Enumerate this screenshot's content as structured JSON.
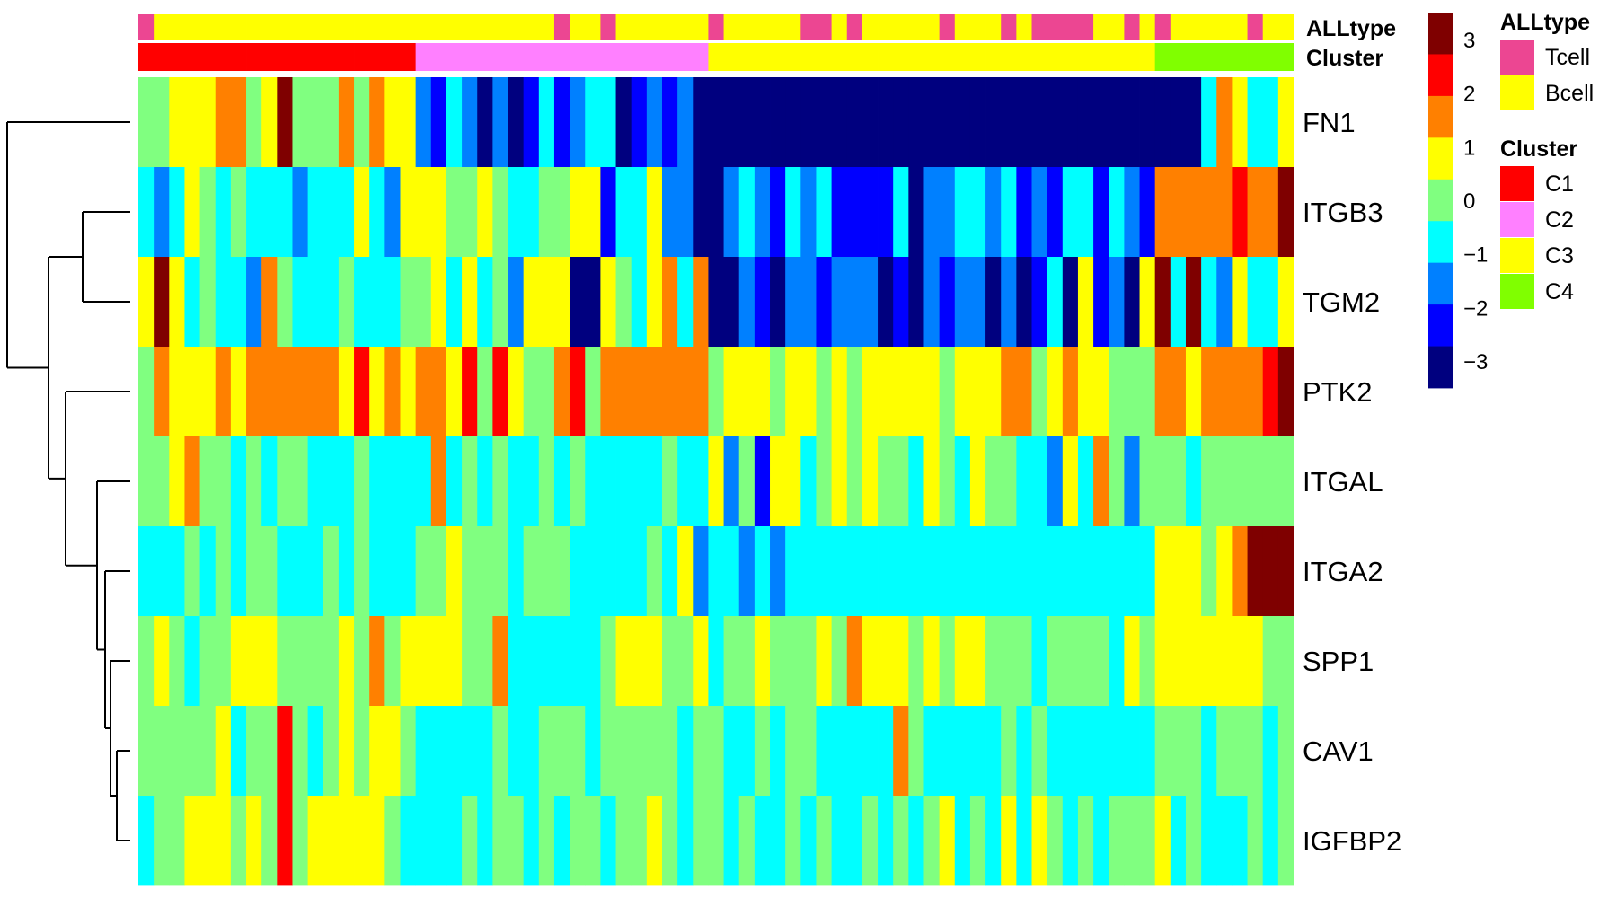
{
  "chart_data": {
    "type": "heatmap",
    "title": "",
    "rows": [
      "FN1",
      "ITGB3",
      "TGM2",
      "PTK2",
      "ITGAL",
      "ITGA2",
      "SPP1",
      "CAV1",
      "IGFBP2"
    ],
    "annotation_labels": {
      "alltype": "ALLtype",
      "cluster": "Cluster"
    },
    "color_scale": {
      "min": -3.5,
      "max": 3.5,
      "ticks": [
        3,
        2,
        1,
        0,
        -1,
        -2,
        -3
      ],
      "tick_labels": [
        "3",
        "2",
        "1",
        "0",
        "−1",
        "−2",
        "−3"
      ],
      "colors": [
        "#00007f",
        "#0000ff",
        "#0080ff",
        "#00ffff",
        "#80ff80",
        "#ffff00",
        "#ff8000",
        "#ff0000",
        "#7f0000"
      ]
    },
    "alltype_legend": {
      "title": "ALLtype",
      "items": [
        {
          "label": "Tcell",
          "color": "#ec4692"
        },
        {
          "label": "Bcell",
          "color": "#ffff00"
        }
      ]
    },
    "cluster_legend": {
      "title": "Cluster",
      "items": [
        {
          "label": "C1",
          "color": "#ff0000"
        },
        {
          "label": "C2",
          "color": "#ff80ff"
        },
        {
          "label": "C3",
          "color": "#ffff00"
        },
        {
          "label": "C4",
          "color": "#80ff00"
        }
      ]
    },
    "column_alltype": [
      "Tcell",
      "Bcell",
      "Bcell",
      "Bcell",
      "Bcell",
      "Bcell",
      "Bcell",
      "Bcell",
      "Bcell",
      "Bcell",
      "Bcell",
      "Bcell",
      "Bcell",
      "Bcell",
      "Bcell",
      "Bcell",
      "Bcell",
      "Bcell",
      "Bcell",
      "Bcell",
      "Bcell",
      "Bcell",
      "Bcell",
      "Bcell",
      "Bcell",
      "Bcell",
      "Bcell",
      "Tcell",
      "Bcell",
      "Bcell",
      "Tcell",
      "Bcell",
      "Bcell",
      "Bcell",
      "Bcell",
      "Bcell",
      "Bcell",
      "Tcell",
      "Bcell",
      "Bcell",
      "Bcell",
      "Bcell",
      "Bcell",
      "Tcell",
      "Tcell",
      "Bcell",
      "Tcell",
      "Bcell",
      "Bcell",
      "Bcell",
      "Bcell",
      "Bcell",
      "Tcell",
      "Bcell",
      "Bcell",
      "Bcell",
      "Tcell",
      "Bcell",
      "Tcell",
      "Tcell",
      "Tcell",
      "Tcell",
      "Bcell",
      "Bcell",
      "Tcell",
      "Bcell",
      "Tcell",
      "Bcell",
      "Bcell",
      "Bcell",
      "Bcell",
      "Bcell",
      "Tcell",
      "Bcell",
      "Bcell"
    ],
    "column_cluster": [
      "C1",
      "C1",
      "C1",
      "C1",
      "C1",
      "C1",
      "C1",
      "C1",
      "C1",
      "C1",
      "C1",
      "C1",
      "C1",
      "C1",
      "C1",
      "C1",
      "C1",
      "C1",
      "C2",
      "C2",
      "C2",
      "C2",
      "C2",
      "C2",
      "C2",
      "C2",
      "C2",
      "C2",
      "C2",
      "C2",
      "C2",
      "C2",
      "C2",
      "C2",
      "C2",
      "C2",
      "C2",
      "C3",
      "C3",
      "C3",
      "C3",
      "C3",
      "C3",
      "C3",
      "C3",
      "C3",
      "C3",
      "C3",
      "C3",
      "C3",
      "C3",
      "C3",
      "C3",
      "C3",
      "C3",
      "C3",
      "C3",
      "C3",
      "C3",
      "C3",
      "C3",
      "C3",
      "C3",
      "C3",
      "C3",
      "C3",
      "C4",
      "C4",
      "C4",
      "C4",
      "C4",
      "C4",
      "C4",
      "C4",
      "C4"
    ],
    "values": [
      [
        0.1,
        0.1,
        0.5,
        0.9,
        0.5,
        1.3,
        1.3,
        0.1,
        0.5,
        3.2,
        0.1,
        0.1,
        0.1,
        1.3,
        0.1,
        1.3,
        0.5,
        0.5,
        -1.5,
        -2.2,
        -1.0,
        -1.5,
        -2.8,
        -1.8,
        -3.2,
        -2.2,
        -0.5,
        -2.2,
        -1.5,
        -1.0,
        -1.0,
        -2.8,
        -2.2,
        -1.5,
        -2.2,
        -1.5,
        -2.8,
        -3.5,
        -3.5,
        -3.5,
        -3.5,
        -3.5,
        -3.5,
        -3.5,
        -3.5,
        -3.5,
        -3.5,
        -3.5,
        -3.5,
        -3.5,
        -3.5,
        -3.5,
        -3.5,
        -3.5,
        -3.5,
        -3.5,
        -3.5,
        -3.5,
        -3.5,
        -3.5,
        -3.5,
        -3.5,
        -3.5,
        -3.5,
        -3.5,
        -3.5,
        -3.5,
        -2.8,
        -3.2,
        -0.5,
        1.3,
        0.5,
        -0.5,
        -0.5,
        0.5
      ],
      [
        -1.0,
        -1.8,
        -0.5,
        0.5,
        0.1,
        -0.5,
        0.1,
        -1.0,
        -0.5,
        -0.5,
        -1.8,
        -1.0,
        -1.0,
        -1.0,
        0.9,
        -1.0,
        -1.8,
        0.9,
        0.5,
        0.9,
        0.1,
        0.1,
        0.9,
        0.1,
        -1.0,
        -1.0,
        0.1,
        0.1,
        0.5,
        0.9,
        -2.2,
        -1.0,
        -1.0,
        0.9,
        -1.8,
        -1.5,
        -3.2,
        -2.8,
        -1.8,
        -1.0,
        -1.8,
        -2.2,
        -1.0,
        -1.5,
        -1.0,
        -2.2,
        -2.2,
        -2.2,
        -2.2,
        -1.0,
        -3.2,
        -1.5,
        -1.8,
        -1.0,
        -0.5,
        -1.8,
        -1.0,
        -2.2,
        -1.8,
        -2.2,
        -1.0,
        -0.5,
        -2.2,
        -1.0,
        -1.8,
        -2.2,
        1.3,
        1.8,
        1.3,
        1.3,
        1.3,
        2.5,
        1.8,
        1.3,
        3.2
      ],
      [
        0.5,
        3.5,
        0.5,
        -0.5,
        0.1,
        -0.5,
        -0.5,
        -1.8,
        1.8,
        0.1,
        -1.0,
        -0.5,
        -1.0,
        0.1,
        -0.5,
        -1.0,
        -1.0,
        0.1,
        0.1,
        0.5,
        -0.5,
        0.5,
        -1.0,
        0.1,
        -1.5,
        0.5,
        0.9,
        0.9,
        -3.5,
        -3.5,
        0.5,
        0.1,
        -1.0,
        0.5,
        1.8,
        -0.5,
        1.8,
        -2.8,
        -3.2,
        -1.8,
        -2.2,
        -2.8,
        -1.8,
        -1.8,
        -2.2,
        -1.8,
        -1.8,
        -1.8,
        -3.2,
        -2.2,
        -2.8,
        -1.8,
        -2.2,
        -1.8,
        -1.8,
        -3.2,
        -1.8,
        -2.8,
        -2.2,
        -0.5,
        -2.8,
        0.5,
        -2.2,
        -1.8,
        -2.8,
        0.9,
        3.2,
        -0.5,
        3.2,
        -1.0,
        -1.5,
        0.5,
        -0.5,
        -0.5,
        0.5
      ],
      [
        0.1,
        1.3,
        0.5,
        0.9,
        0.5,
        1.8,
        0.9,
        1.3,
        1.3,
        1.3,
        1.3,
        1.3,
        1.8,
        0.9,
        2.5,
        0.5,
        1.3,
        0.9,
        1.8,
        1.3,
        0.5,
        2.5,
        0.1,
        2.5,
        0.5,
        0.1,
        0.1,
        1.3,
        2.5,
        0.1,
        1.8,
        1.3,
        1.3,
        1.3,
        1.3,
        1.3,
        1.3,
        0.1,
        0.5,
        0.5,
        0.5,
        0.1,
        0.5,
        0.9,
        0.1,
        0.5,
        0.1,
        0.5,
        0.5,
        0.9,
        0.5,
        0.9,
        0.1,
        0.5,
        0.5,
        0.5,
        1.3,
        1.3,
        0.1,
        0.5,
        1.8,
        0.5,
        0.5,
        0.1,
        0.1,
        0.1,
        1.3,
        1.8,
        0.9,
        1.8,
        1.3,
        1.3,
        1.8,
        2.5,
        3.5
      ],
      [
        0.1,
        0.1,
        0.5,
        1.8,
        0.1,
        0.1,
        -0.5,
        0.1,
        -0.5,
        0.1,
        0.1,
        -0.5,
        -0.5,
        -0.5,
        0.1,
        -0.5,
        -0.5,
        -0.5,
        -1.0,
        1.3,
        -1.0,
        0.1,
        -0.5,
        0.1,
        -0.5,
        -0.5,
        0.1,
        -0.5,
        0.1,
        -1.0,
        -0.5,
        -0.5,
        -1.0,
        -0.5,
        0.1,
        -0.5,
        -1.0,
        0.9,
        -1.8,
        0.1,
        -2.2,
        0.5,
        0.5,
        -1.0,
        0.1,
        0.9,
        0.1,
        0.5,
        0.1,
        0.1,
        -0.5,
        0.5,
        0.1,
        -0.5,
        0.5,
        0.1,
        0.1,
        -0.5,
        -0.5,
        -1.8,
        0.9,
        -0.5,
        1.8,
        0.1,
        -1.8,
        0.1,
        0.1,
        0.1,
        -0.5,
        0.1,
        0.1,
        0.1,
        0.1,
        0.1,
        0.1
      ],
      [
        -0.5,
        -0.5,
        -0.5,
        0.1,
        -0.5,
        0.1,
        -0.5,
        0.1,
        0.1,
        -0.5,
        -0.5,
        -0.5,
        0.1,
        -0.5,
        0.1,
        -1.0,
        -0.5,
        -0.5,
        0.1,
        0.1,
        0.5,
        0.1,
        0.1,
        0.1,
        -0.5,
        0.1,
        0.1,
        0.1,
        -1.0,
        -1.0,
        -0.5,
        -1.0,
        -0.5,
        0.1,
        -1.0,
        0.5,
        -1.5,
        -1.0,
        -1.0,
        -1.5,
        -1.0,
        -1.8,
        -1.0,
        -0.5,
        -1.0,
        -0.5,
        -0.5,
        -0.5,
        -1.0,
        -0.5,
        -0.5,
        -1.0,
        -0.5,
        -0.5,
        -0.5,
        -1.0,
        -1.0,
        -0.5,
        -0.5,
        -0.5,
        -1.0,
        -0.5,
        -1.0,
        -1.0,
        -0.5,
        -0.5,
        0.9,
        0.9,
        0.5,
        0.1,
        0.5,
        1.3,
        3.5,
        3.5,
        3.5
      ],
      [
        0.1,
        0.5,
        0.1,
        -0.5,
        0.1,
        0.1,
        0.5,
        0.5,
        0.5,
        0.1,
        0.1,
        0.1,
        0.1,
        0.5,
        0.1,
        1.3,
        0.1,
        0.5,
        0.5,
        0.5,
        0.5,
        0.1,
        0.1,
        1.3,
        -0.5,
        -0.5,
        -0.5,
        -0.5,
        -0.5,
        -0.5,
        0.1,
        0.5,
        0.9,
        0.5,
        0.1,
        0.1,
        0.9,
        -0.5,
        0.1,
        0.1,
        0.5,
        0.1,
        0.1,
        0.1,
        0.5,
        0.1,
        1.3,
        0.5,
        0.5,
        0.5,
        0.1,
        0.5,
        0.1,
        0.5,
        0.5,
        0.1,
        0.1,
        0.1,
        -0.5,
        0.1,
        0.1,
        0.1,
        0.1,
        -0.5,
        0.5,
        0.1,
        0.5,
        0.5,
        0.5,
        0.5,
        0.5,
        0.5,
        0.5,
        0.1,
        0.1
      ],
      [
        0.1,
        0.1,
        0.1,
        0.1,
        0.1,
        0.9,
        -0.5,
        0.1,
        0.1,
        2.5,
        0.1,
        -0.5,
        0.1,
        0.5,
        0.1,
        0.5,
        0.5,
        0.1,
        -0.5,
        -0.5,
        -0.5,
        -0.5,
        -0.5,
        0.1,
        -0.5,
        -0.5,
        0.1,
        0.1,
        0.1,
        -0.5,
        0.1,
        0.1,
        0.1,
        0.1,
        0.1,
        -0.5,
        0.1,
        0.1,
        -0.5,
        -0.5,
        0.1,
        -0.5,
        0.1,
        0.1,
        -0.5,
        -0.5,
        -0.5,
        -0.5,
        -0.5,
        1.3,
        0.1,
        -0.5,
        -0.5,
        -0.5,
        -0.5,
        -0.5,
        0.1,
        -0.5,
        0.1,
        -1.0,
        -0.5,
        -1.0,
        -0.5,
        -0.5,
        -1.0,
        -0.5,
        0.1,
        0.1,
        0.1,
        -0.5,
        0.1,
        0.1,
        0.1,
        -1.0,
        0.1
      ],
      [
        -1.0,
        0.1,
        0.1,
        0.9,
        0.5,
        0.5,
        0.1,
        0.5,
        0.1,
        2.5,
        0.1,
        0.5,
        0.9,
        0.5,
        0.9,
        0.9,
        0.1,
        -0.5,
        -0.5,
        -0.5,
        -0.5,
        0.1,
        -0.5,
        0.1,
        0.1,
        -1.0,
        0.1,
        -1.0,
        0.1,
        0.1,
        -1.0,
        0.1,
        0.1,
        0.5,
        0.1,
        -0.5,
        0.1,
        0.1,
        -1.0,
        0.1,
        -0.5,
        -1.0,
        0.1,
        -0.5,
        0.1,
        -1.0,
        -0.5,
        0.1,
        -0.5,
        0.1,
        -1.0,
        0.1,
        0.5,
        -1.0,
        0.1,
        -1.0,
        0.5,
        -1.0,
        0.5,
        0.1,
        -1.0,
        0.1,
        -1.0,
        0.1,
        0.1,
        0.1,
        0.5,
        -0.5,
        0.1,
        -0.5,
        -1.0,
        -0.5,
        0.1,
        -0.5,
        0.1
      ]
    ]
  }
}
